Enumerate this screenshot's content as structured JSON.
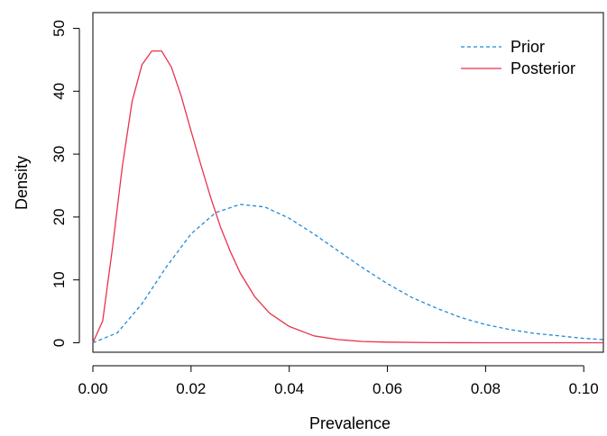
{
  "chart_data": {
    "type": "line",
    "title": "",
    "xlabel": "Prevalence",
    "ylabel": "Density",
    "xlim": [
      0,
      0.104
    ],
    "ylim": [
      -1.5,
      52.5
    ],
    "x_ticks": [
      0.0,
      0.02,
      0.04,
      0.06,
      0.08,
      0.1
    ],
    "x_tick_labels": [
      "0.00",
      "0.02",
      "0.04",
      "0.06",
      "0.08",
      "0.10"
    ],
    "y_ticks": [
      0,
      10,
      20,
      30,
      40,
      50
    ],
    "y_tick_labels": [
      "0",
      "10",
      "20",
      "30",
      "40",
      "50"
    ],
    "grid": false,
    "legend_position": "top-right",
    "series": [
      {
        "name": "Prior",
        "color": "#1f8ad6",
        "line_style": "dashed",
        "x": [
          0.0,
          0.005,
          0.01,
          0.015,
          0.02,
          0.025,
          0.03,
          0.035,
          0.04,
          0.045,
          0.05,
          0.055,
          0.06,
          0.065,
          0.07,
          0.075,
          0.08,
          0.085,
          0.09,
          0.095,
          0.1,
          0.104
        ],
        "y": [
          0.0,
          1.6,
          6.2,
          12.1,
          17.3,
          20.7,
          22.0,
          21.6,
          19.8,
          17.3,
          14.6,
          11.9,
          9.4,
          7.2,
          5.5,
          4.0,
          2.9,
          2.1,
          1.5,
          1.1,
          0.7,
          0.5
        ]
      },
      {
        "name": "Posterior",
        "color": "#e8334a",
        "line_style": "solid",
        "x": [
          0.0,
          0.002,
          0.004,
          0.006,
          0.008,
          0.01,
          0.012,
          0.014,
          0.016,
          0.018,
          0.02,
          0.022,
          0.024,
          0.026,
          0.028,
          0.03,
          0.033,
          0.036,
          0.04,
          0.045,
          0.05,
          0.055,
          0.06,
          0.07,
          0.08,
          0.09,
          0.1,
          0.104
        ],
        "y": [
          0.0,
          3.5,
          15.2,
          28.1,
          38.4,
          44.2,
          46.4,
          46.4,
          43.8,
          39.2,
          33.7,
          28.3,
          23.1,
          18.4,
          14.5,
          11.1,
          7.3,
          4.7,
          2.6,
          1.1,
          0.5,
          0.2,
          0.1,
          0.02,
          0.0,
          0.0,
          0.0,
          0.0
        ]
      }
    ]
  }
}
